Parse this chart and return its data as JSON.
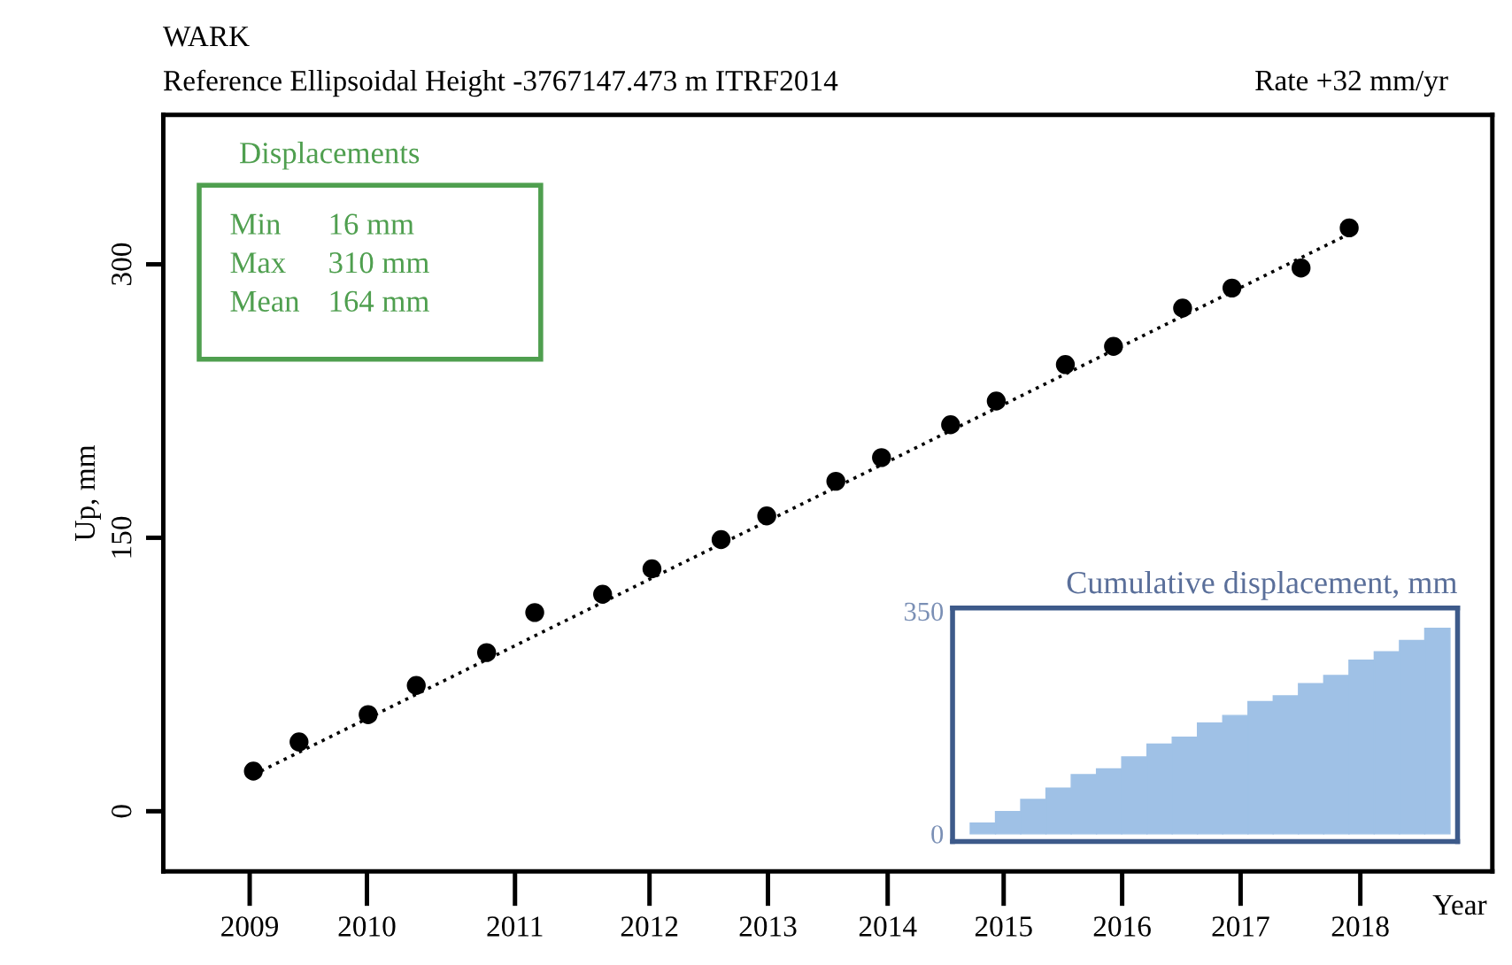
{
  "chart_data": [
    {
      "type": "scatter",
      "title": "WARK",
      "subtitle": "Reference Ellipsoidal Height -3767147.473 m ITRF2014",
      "xlabel": "Year",
      "ylabel": "Up, mm",
      "annotations": [
        "Rate +32 mm/yr",
        "Displacements",
        "Min",
        "16 mm",
        "Max",
        "310 mm",
        "Mean",
        "164 mm"
      ],
      "xlim": [
        2008.3,
        2019.07
      ],
      "ylim": [
        -33,
        382
      ],
      "xticks": [
        {
          "value": 2009.0,
          "label": "2009"
        },
        {
          "value": 2009.95,
          "label": "2010"
        },
        {
          "value": 2011.15,
          "label": "2011"
        },
        {
          "value": 2012.24,
          "label": "2012"
        },
        {
          "value": 2013.2,
          "label": "2013"
        },
        {
          "value": 2014.17,
          "label": "2014"
        },
        {
          "value": 2015.11,
          "label": "2015"
        },
        {
          "value": 2016.07,
          "label": "2016"
        },
        {
          "value": 2017.03,
          "label": "2017"
        },
        {
          "value": 2018.0,
          "label": "2018"
        }
      ],
      "yticks": [
        0,
        150,
        300
      ],
      "grid": false,
      "legend": false,
      "series": [
        {
          "type": "scatter",
          "color": "#000000",
          "marker": "circle",
          "x": [
            2009.03,
            2009.4,
            2009.96,
            2010.35,
            2010.92,
            2011.31,
            2011.86,
            2012.26,
            2012.82,
            2013.19,
            2013.75,
            2014.12,
            2014.68,
            2015.05,
            2015.61,
            2016.0,
            2016.56,
            2016.96,
            2017.52,
            2017.91
          ],
          "values": [
            22,
            38,
            53,
            69,
            87,
            109,
            119,
            133,
            149,
            162,
            181,
            194,
            212,
            225,
            245,
            255,
            276,
            287,
            298,
            320
          ]
        },
        {
          "type": "line",
          "color": "#000000",
          "line_style": "dotted",
          "marker": "none",
          "x": [
            2009.03,
            2017.95
          ],
          "values": [
            20,
            318
          ]
        }
      ]
    },
    {
      "type": "bar",
      "title": "Cumulative displacement, mm",
      "color": "#9fc1e6",
      "categories": [
        null,
        null,
        null,
        null,
        null,
        null,
        null,
        null,
        null,
        null,
        null,
        null,
        null,
        null,
        null,
        null,
        null,
        null,
        null
      ],
      "values": [
        17,
        35,
        54,
        72,
        93,
        102,
        121,
        141,
        152,
        174,
        186,
        208,
        217,
        236,
        249,
        273,
        286,
        304,
        323
      ],
      "ylim": [
        -12,
        355
      ],
      "yticks": [
        0,
        350
      ],
      "tick_labels": "y",
      "grid": false
    }
  ]
}
